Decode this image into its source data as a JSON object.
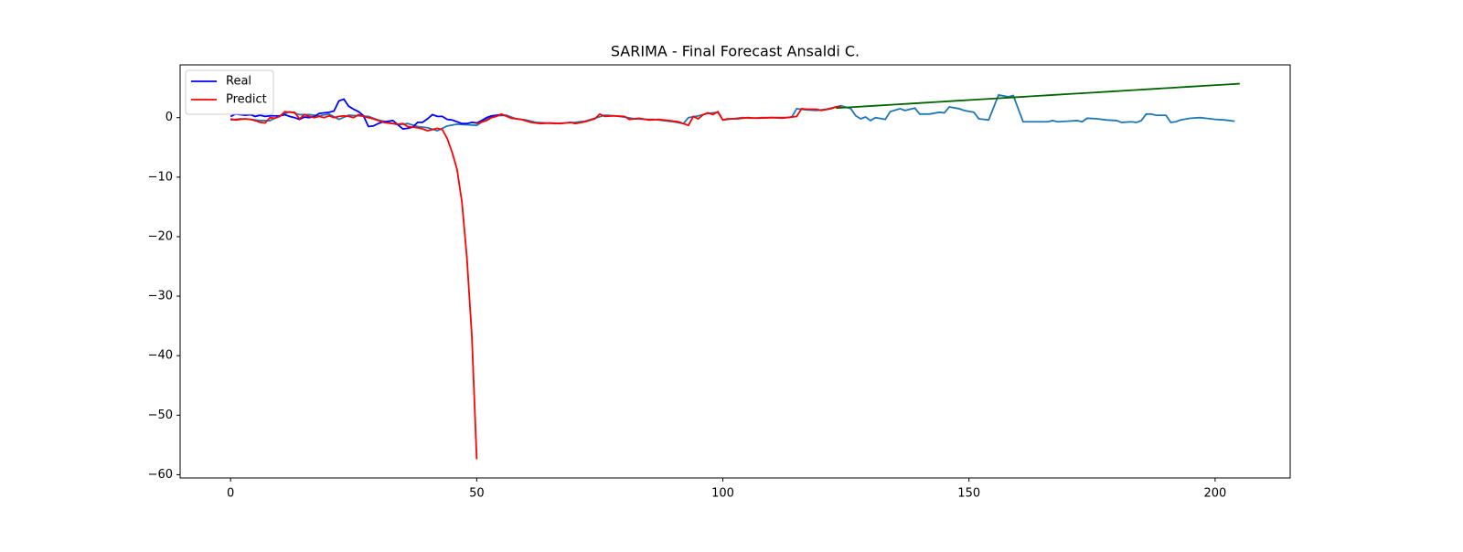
{
  "chart_data": {
    "type": "line",
    "title": "SARIMA - Final Forecast Ansaldi C.",
    "xlim": [
      -10.25,
      215.25
    ],
    "ylim": [
      -60.55,
      8.86
    ],
    "xticks": [
      0,
      50,
      100,
      150,
      200
    ],
    "yticks": [
      {
        "value": -60,
        "label": "−60"
      },
      {
        "value": -50,
        "label": "−50"
      },
      {
        "value": -40,
        "label": "−40"
      },
      {
        "value": -30,
        "label": "−30"
      },
      {
        "value": -20,
        "label": "−20"
      },
      {
        "value": -10,
        "label": "−10"
      },
      0
    ],
    "legend": "upper left",
    "series": [
      {
        "color": "#1f77b4",
        "x": [
          0,
          2,
          4,
          6,
          8,
          10,
          12,
          14,
          16,
          18,
          20,
          22,
          24,
          26,
          28,
          30,
          32,
          34,
          36,
          38,
          40,
          42,
          44,
          46,
          48,
          50,
          52,
          54,
          56,
          58,
          60,
          62,
          64,
          66,
          68,
          70,
          72,
          74,
          76,
          78,
          80,
          82,
          84,
          86,
          88,
          90,
          92,
          93,
          95,
          97,
          99,
          100,
          102,
          104,
          106,
          108,
          110,
          112,
          114,
          115,
          117,
          119,
          121,
          122,
          124,
          126,
          127,
          128,
          129,
          130,
          131,
          133,
          134,
          136,
          137,
          139,
          140,
          142,
          144,
          145,
          146,
          148,
          149,
          151,
          152,
          154,
          156,
          158,
          159,
          160,
          161,
          163,
          166,
          167,
          168,
          170,
          172,
          173,
          174,
          176,
          178,
          180,
          181,
          183,
          184,
          185,
          186,
          187,
          188,
          189,
          190,
          191,
          192,
          193,
          195,
          197,
          198,
          200,
          202,
          204
        ],
        "values": [
          -0.4,
          -0.2,
          -0.3,
          -0.5,
          -0.5,
          0.3,
          1.0,
          0.5,
          0.5,
          0.3,
          0.6,
          -0.3,
          0.4,
          0.3,
          0.2,
          -0.4,
          -0.8,
          -1.2,
          -1.0,
          -1.5,
          -1.7,
          -2.2,
          -1.4,
          -1.1,
          -1.2,
          -1.3,
          -0.2,
          0.3,
          0.4,
          -0.2,
          -0.4,
          -0.8,
          -0.9,
          -1.0,
          -0.9,
          -0.8,
          -0.6,
          -0.1,
          0.4,
          0.3,
          0.1,
          -0.2,
          -0.3,
          -0.3,
          -0.5,
          -0.7,
          -1.0,
          0,
          0.3,
          0.7,
          0.9,
          -0.4,
          -0.2,
          0,
          -0.1,
          0,
          0,
          -0.1,
          0.1,
          1.5,
          1.3,
          1.2,
          1.4,
          1.6,
          2.0,
          1.5,
          0.3,
          -0.2,
          0.1,
          -0.5,
          0,
          -0.3,
          1.0,
          1.5,
          1.2,
          1.6,
          0.6,
          0.6,
          0.9,
          0.8,
          1.8,
          1.5,
          1.2,
          0.9,
          -0.2,
          -0.4,
          3.8,
          3.5,
          3.7,
          1.5,
          -0.7,
          -0.7,
          -0.7,
          -0.5,
          -0.7,
          -0.6,
          -0.5,
          -0.7,
          -0.1,
          -0.2,
          -0.4,
          -0.5,
          -0.8,
          -0.7,
          -0.8,
          -0.5,
          0.6,
          0.6,
          0.4,
          0.4,
          0.4,
          -0.8,
          -0.7,
          -0.4,
          -0.1,
          0,
          -0.1,
          -0.3,
          -0.4,
          -0.6
        ]
      },
      {
        "name": "Real",
        "color": "#0000ff",
        "x": [
          0,
          1,
          2,
          3,
          4,
          5,
          6,
          7,
          8,
          9,
          10,
          11,
          12,
          13,
          14,
          15,
          16,
          17,
          18,
          19,
          20,
          21,
          22,
          23,
          24,
          25,
          26,
          27,
          28,
          29,
          30,
          31,
          32,
          33,
          34,
          35,
          36,
          37,
          38,
          39,
          40,
          41,
          42,
          43,
          44,
          45,
          46,
          47,
          48,
          49,
          50,
          51,
          52,
          53,
          54,
          55,
          56
        ],
        "values": [
          0.2,
          0.6,
          0.5,
          0.4,
          0.5,
          0.2,
          0.4,
          0.2,
          0.3,
          0.3,
          0.3,
          0.5,
          0.2,
          0,
          -0.3,
          0.1,
          0,
          0.2,
          0.7,
          0.8,
          0.9,
          1.1,
          2.8,
          3.1,
          1.9,
          1.4,
          1.0,
          0.3,
          -1.5,
          -1.4,
          -1.0,
          -0.7,
          -0.6,
          -0.5,
          -1.2,
          -1.9,
          -1.8,
          -1.6,
          -0.8,
          -0.8,
          -0.2,
          0.5,
          0.2,
          0.2,
          -0.3,
          -0.4,
          -0.7,
          -1.0,
          -1.0,
          -0.8,
          -0.9,
          -0.5,
          0,
          0.3,
          0.4,
          0.5,
          0.3
        ]
      },
      {
        "name": "Predict",
        "color": "#ff0000",
        "x": [
          0,
          1,
          2,
          3,
          4,
          5,
          6,
          7,
          8,
          9,
          10,
          11,
          12,
          13,
          14,
          15,
          16,
          17,
          18,
          19,
          20,
          21,
          22,
          23,
          24,
          25,
          26,
          27,
          28,
          29,
          30,
          31,
          32,
          33,
          34,
          35,
          36,
          37,
          38,
          39,
          40,
          41,
          42,
          43,
          44,
          45,
          46,
          47,
          48,
          49,
          50
        ],
        "values": [
          -0.2,
          -0.4,
          -0.3,
          -0.2,
          -0.3,
          -0.5,
          -0.8,
          -0.9,
          0,
          -0.1,
          0.2,
          1.0,
          0.9,
          0.9,
          -0.2,
          0.5,
          0.2,
          0,
          0.2,
          0,
          0.3,
          0,
          0.2,
          0.3,
          0.2,
          0,
          0.5,
          0.2,
          0,
          -0.2,
          -0.5,
          -0.8,
          -0.9,
          -1.0,
          -1.1,
          -1.0,
          -1.5,
          -1.6,
          -1.7,
          -1.9,
          -2.2,
          -2.0,
          -1.8,
          -2.0,
          -3.5,
          -5.8,
          -8.7,
          -14.2,
          -23.5,
          -36.5,
          -57.4
        ]
      },
      {
        "color": "#ff0000",
        "x": [
          50,
          52,
          53,
          54,
          55,
          57,
          59,
          61,
          63,
          65,
          67,
          69,
          70,
          72,
          74,
          75,
          76,
          78,
          80,
          81,
          83,
          85,
          87,
          89,
          91,
          93,
          94,
          95,
          96,
          97,
          98,
          99,
          100,
          101,
          103,
          105,
          107,
          110,
          113,
          115,
          116,
          117,
          119,
          120,
          122,
          123,
          124
        ],
        "values": [
          -1.0,
          -0.5,
          0,
          0.2,
          0.6,
          -0.1,
          -0.3,
          -0.8,
          -1.0,
          -0.9,
          -1.0,
          -0.8,
          -1.0,
          -0.7,
          -0.2,
          0.6,
          0.2,
          0.3,
          0.2,
          -0.3,
          -0.1,
          -0.4,
          -0.3,
          -0.5,
          -0.7,
          -1.3,
          0.2,
          -0.2,
          0.5,
          0.8,
          0.5,
          1.0,
          -0.4,
          -0.2,
          -0.2,
          0,
          -0.1,
          0,
          0,
          0.2,
          1.5,
          1.4,
          1.4,
          1.2,
          1.5,
          1.8,
          1.9
        ]
      },
      {
        "color": "#006400",
        "x": [
          123,
          127,
          131,
          135,
          139,
          143,
          147,
          151,
          155,
          159,
          163,
          167,
          171,
          175,
          179,
          183,
          187,
          191,
          195,
          199,
          203,
          205
        ],
        "values": [
          1.6,
          1.8,
          2.0,
          2.2,
          2.4,
          2.6,
          2.8,
          3.0,
          3.2,
          3.4,
          3.6,
          3.8,
          4.0,
          4.2,
          4.4,
          4.6,
          4.8,
          5.0,
          5.2,
          5.4,
          5.6,
          5.7
        ]
      }
    ]
  }
}
